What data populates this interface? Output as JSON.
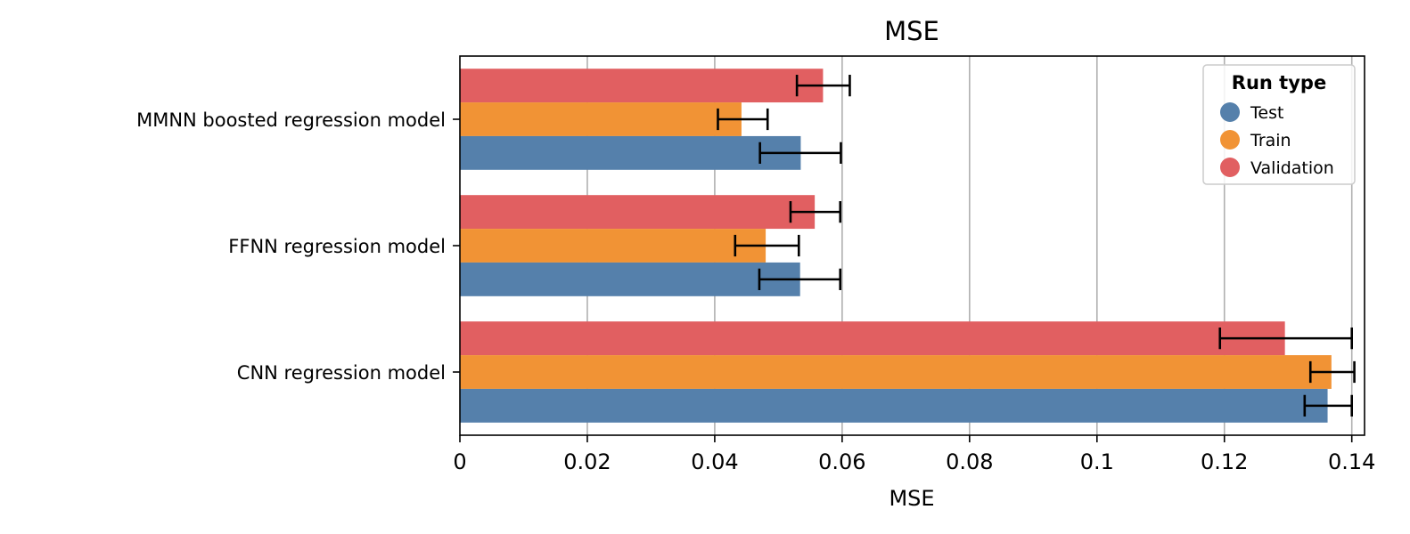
{
  "chart_data": {
    "type": "bar",
    "orientation": "horizontal",
    "title": "MSE",
    "xlabel": "MSE",
    "ylabel": "",
    "xlim": [
      0,
      0.142
    ],
    "xticks": [
      0,
      0.02,
      0.04,
      0.06,
      0.08,
      0.1,
      0.12,
      0.14
    ],
    "xtick_labels": [
      "0",
      "0.02",
      "0.04",
      "0.06",
      "0.08",
      "0.1",
      "0.12",
      "0.14"
    ],
    "grid": "vertical",
    "categories": [
      "MMNN boosted regression model",
      "FFNN regression model",
      "CNN regression model"
    ],
    "series": [
      {
        "name": "Validation",
        "color": "#e15f61",
        "values": [
          0.057,
          0.0557,
          0.1295
        ],
        "err_low": [
          0.0529,
          0.0519,
          0.1193
        ],
        "err_high": [
          0.0612,
          0.0597,
          0.14
        ]
      },
      {
        "name": "Train",
        "color": "#f19335",
        "values": [
          0.0442,
          0.048,
          0.1368
        ],
        "err_low": [
          0.0405,
          0.0432,
          0.1335
        ],
        "err_high": [
          0.0483,
          0.0532,
          0.1404
        ]
      },
      {
        "name": "Test",
        "color": "#5580ab",
        "values": [
          0.0535,
          0.0534,
          0.1362
        ],
        "err_low": [
          0.0471,
          0.047,
          0.1326
        ],
        "err_high": [
          0.0598,
          0.0597,
          0.14
        ]
      }
    ],
    "legend": {
      "title": "Run type",
      "placement": "top-right",
      "entries": [
        {
          "label": "Test",
          "color": "#5580ab"
        },
        {
          "label": "Train",
          "color": "#f19335"
        },
        {
          "label": "Validation",
          "color": "#e15f61"
        }
      ]
    }
  }
}
